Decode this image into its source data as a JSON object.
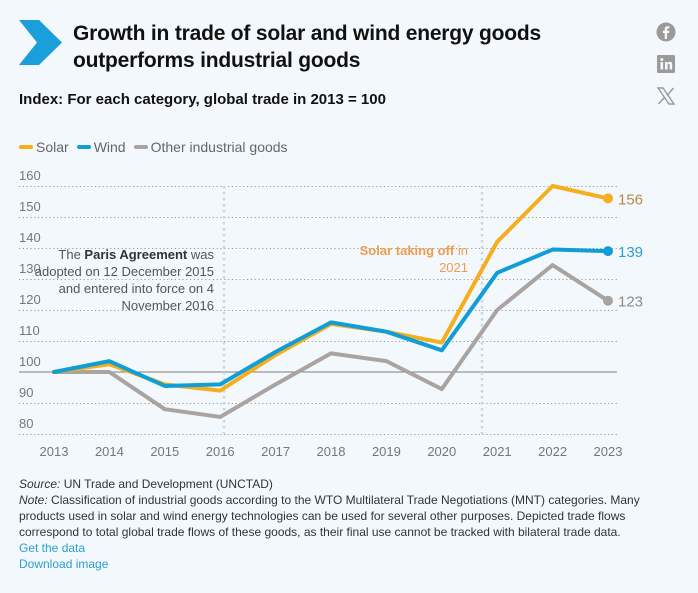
{
  "header": {
    "title": "Growth in trade of solar and wind energy goods outperforms industrial goods",
    "subtitle": "Index: For each category, global trade in 2013 = 100",
    "brand_color": "#1a9fdb"
  },
  "social": [
    {
      "name": "facebook-icon",
      "label": "Facebook"
    },
    {
      "name": "linkedin-icon",
      "label": "LinkedIn"
    },
    {
      "name": "x-icon",
      "label": "X"
    }
  ],
  "chart_data": {
    "type": "line",
    "title": "Growth in trade of solar and wind energy goods outperforms industrial goods",
    "subtitle": "Index: For each category, global trade in 2013 = 100",
    "xlabel": "",
    "ylabel": "",
    "x": [
      "2013",
      "2014",
      "2015",
      "2016",
      "2017",
      "2018",
      "2019",
      "2020",
      "2021",
      "2022",
      "2023"
    ],
    "ylim": [
      80,
      160
    ],
    "yticks": [
      160,
      150,
      140,
      130,
      120,
      110,
      100,
      90,
      80
    ],
    "grid": true,
    "baseline": 100,
    "legend_position": "top-left",
    "series": [
      {
        "name": "Solar",
        "color": "#f5ae1c",
        "label_color": "#b5894a",
        "end_label": "156",
        "values": [
          100,
          102.5,
          96,
          94,
          105.5,
          115.5,
          113,
          109.5,
          142,
          160,
          156
        ]
      },
      {
        "name": "Wind",
        "color": "#119ed6",
        "label_color": "#2a9fd0",
        "end_label": "139",
        "values": [
          100,
          103.5,
          95.5,
          96,
          106.5,
          116,
          113,
          107,
          132,
          139.5,
          139
        ]
      },
      {
        "name": "Other industrial goods",
        "color": "#a9a3a1",
        "label_color": "#8e8a8a",
        "end_label": "123",
        "values": [
          100,
          100,
          88,
          85.5,
          96,
          106,
          103.5,
          94.5,
          120,
          134.5,
          123
        ]
      }
    ],
    "annotations": [
      {
        "x": "2016",
        "parts": [
          {
            "text": "The ",
            "bold": false
          },
          {
            "text": "Paris Agreement",
            "bold": true
          },
          {
            "text": " was",
            "bold": false
          }
        ],
        "lines": [
          "adopted on 12 December 2015",
          "and entered into force on 4",
          "November 2016"
        ],
        "color": "#555555"
      },
      {
        "x": "2021",
        "parts": [
          {
            "text": "Solar taking off",
            "bold": true
          },
          {
            "text": " in",
            "bold": false
          }
        ],
        "lines": [
          "2021"
        ],
        "color": "#ef9c4f"
      }
    ]
  },
  "footer": {
    "source_label": "Source:",
    "source_text": " UN Trade and Development (UNCTAD)",
    "note_label": "Note:",
    "note_text": " Classification of industrial goods according to the WTO Multilateral Trade Negotiations (MNT) categories. Many products used in solar and wind energy technologies can be used for several other purposes. Depicted trade flows correspond to total global trade flows of these goods, as their final use cannot be tracked with bilateral trade data.",
    "get_data": "Get the data",
    "download_image": "Download image"
  }
}
